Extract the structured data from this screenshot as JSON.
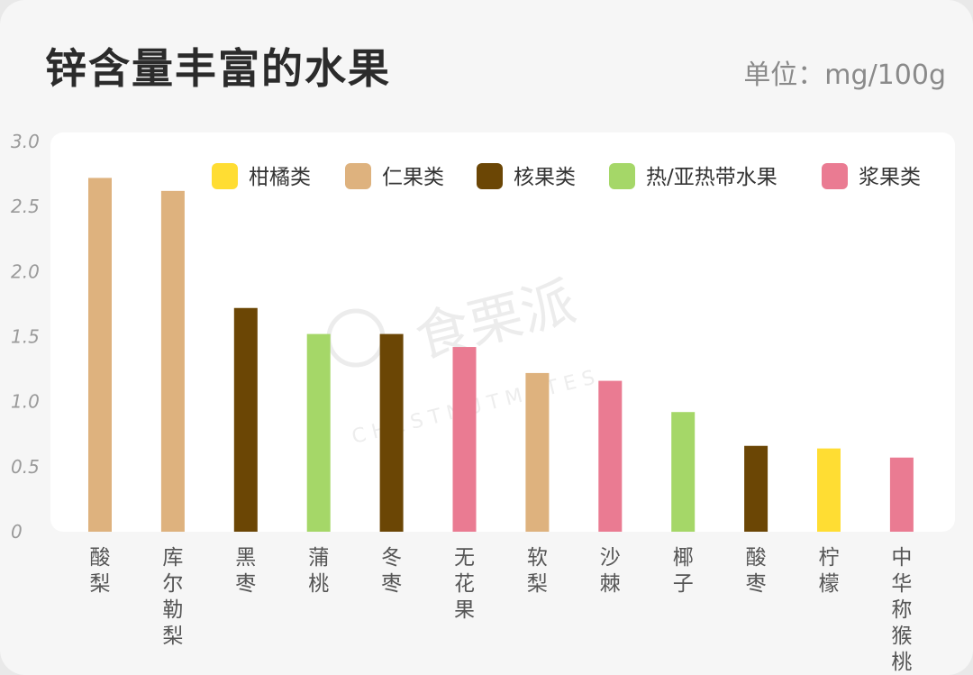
{
  "title": "锌含量丰富的水果",
  "unit_label": "单位：mg/100g",
  "watermark": {
    "cn": "食栗派",
    "en": "CHESTNUTMATES"
  },
  "colors": {
    "柑橘类": "#FFDD33",
    "仁果类": "#DEB27E",
    "核果类": "#6B4605",
    "热/亚热带水果": "#A5D768",
    "浆果类": "#EA7B92"
  },
  "chart_data": {
    "type": "bar",
    "title": "锌含量丰富的水果",
    "xlabel": "",
    "ylabel": "",
    "ylim": [
      0,
      3.0
    ],
    "yticks": [
      "0",
      "0.5",
      "1.0",
      "1.5",
      "2.0",
      "2.5",
      "3.0"
    ],
    "ytick_values": [
      0,
      0.5,
      1.0,
      1.5,
      2.0,
      2.5,
      3.0
    ],
    "grid": false,
    "legend_position": "top-right",
    "legend": [
      "柑橘类",
      "仁果类",
      "核果类",
      "热/亚热带水果",
      "浆果类"
    ],
    "categories": [
      "酸梨",
      "库尔勒梨",
      "黑枣",
      "蒲桃",
      "冬枣",
      "无花果",
      "软梨",
      "沙棘",
      "椰子",
      "酸枣",
      "柠檬",
      "中华称猴桃"
    ],
    "values": [
      2.72,
      2.62,
      1.72,
      1.52,
      1.52,
      1.42,
      1.22,
      1.16,
      0.92,
      0.66,
      0.64,
      0.57
    ],
    "groups": [
      "仁果类",
      "仁果类",
      "核果类",
      "热/亚热带水果",
      "核果类",
      "浆果类",
      "仁果类",
      "浆果类",
      "热/亚热带水果",
      "核果类",
      "柑橘类",
      "浆果类"
    ]
  }
}
